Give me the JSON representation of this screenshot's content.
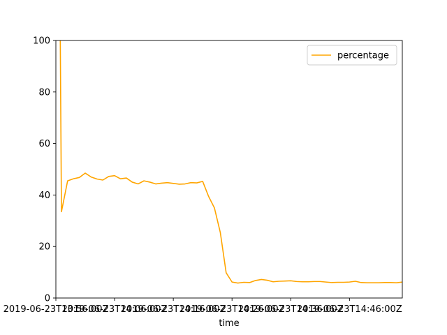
{
  "chart_data": {
    "type": "line",
    "title": "",
    "xlabel": "time",
    "ylabel": "",
    "ylim": [
      0,
      100
    ],
    "y_ticks": [
      0,
      20,
      40,
      60,
      80,
      100
    ],
    "x_tick_labels": [
      "2019-06-23T13:56:00Z",
      "2019-06-23T14:06:00Z",
      "2019-06-23T14:16:00Z",
      "2019-06-23T14:26:00Z",
      "2019-06-23T14:36:00Z",
      "2019-06-23T14:46:00Z"
    ],
    "x_tick_minutes": [
      0,
      10,
      20,
      30,
      40,
      50
    ],
    "xlim_minutes": [
      0,
      59
    ],
    "grid": false,
    "legend": {
      "position": "top-right",
      "entries": [
        "percentage"
      ]
    },
    "series": [
      {
        "name": "percentage",
        "color": "#ffa500",
        "x_minutes": [
          0.75,
          0.95,
          2,
          3,
          4,
          5,
          6,
          7,
          8,
          9,
          10,
          11,
          12,
          13,
          14,
          15,
          16,
          17,
          18,
          19,
          20,
          21,
          22,
          23,
          24,
          25,
          26,
          27,
          28,
          29,
          30,
          31,
          32,
          33,
          34,
          35,
          36,
          37,
          38,
          39,
          40,
          41,
          42,
          43,
          44,
          45,
          46,
          47,
          48,
          49,
          50,
          51,
          52,
          53,
          54,
          55,
          56,
          57,
          58,
          59
        ],
        "values": [
          100,
          33.5,
          45.5,
          46.3,
          46.8,
          48.5,
          47,
          46.2,
          45.8,
          47.2,
          47.5,
          46.3,
          46.6,
          45,
          44.3,
          45.5,
          45,
          44.3,
          44.6,
          44.8,
          44.5,
          44.2,
          44.3,
          44.8,
          44.7,
          45.3,
          39.5,
          35,
          25.5,
          9.8,
          6.2,
          5.8,
          6.1,
          6,
          6.8,
          7.2,
          6.9,
          6.3,
          6.5,
          6.6,
          6.7,
          6.4,
          6.3,
          6.3,
          6.4,
          6.4,
          6.2,
          6,
          6.1,
          6.1,
          6.2,
          6.5,
          6,
          5.9,
          5.9,
          5.9,
          6,
          6,
          5.9,
          6.2
        ]
      }
    ]
  }
}
